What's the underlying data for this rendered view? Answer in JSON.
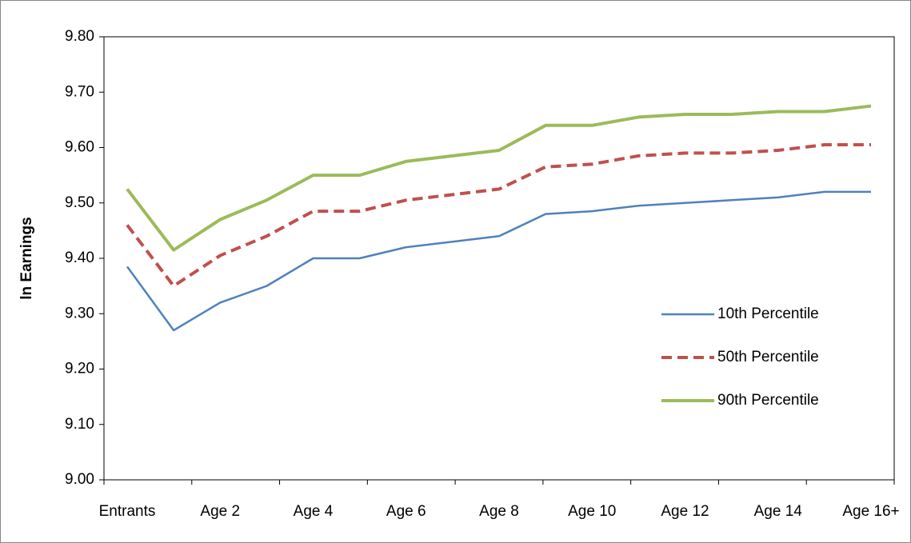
{
  "chart_data": {
    "type": "line",
    "y_label": "ln Earnings",
    "categories": [
      "Entrants",
      null,
      "Age 2",
      null,
      "Age 4",
      null,
      "Age 6",
      null,
      "Age 8",
      null,
      "Age 10",
      null,
      "Age 12",
      null,
      "Age 14",
      null,
      "Age 16+"
    ],
    "series": [
      {
        "name": "10th Percentile",
        "color": "#4f81bd",
        "dash": "solid",
        "values": [
          9.385,
          9.27,
          9.32,
          9.35,
          9.4,
          9.4,
          9.42,
          9.43,
          9.44,
          9.48,
          9.485,
          9.495,
          9.5,
          9.505,
          9.51,
          9.52,
          9.52
        ]
      },
      {
        "name": "50th Percentile",
        "color": "#c0504d",
        "dash": "dashed",
        "values": [
          9.46,
          9.35,
          9.405,
          9.44,
          9.485,
          9.485,
          9.505,
          9.515,
          9.525,
          9.565,
          9.57,
          9.585,
          9.59,
          9.59,
          9.595,
          9.605,
          9.605
        ]
      },
      {
        "name": "90th Percentile",
        "color": "#9bbb59",
        "dash": "solid",
        "values": [
          9.525,
          9.415,
          9.47,
          9.505,
          9.55,
          9.55,
          9.575,
          9.585,
          9.595,
          9.64,
          9.64,
          9.655,
          9.66,
          9.66,
          9.665,
          9.665,
          9.675
        ]
      }
    ],
    "ylim": [
      9.0,
      9.8
    ],
    "yticks": [
      {
        "value": 9.0,
        "label": "9.00"
      },
      {
        "value": 9.1,
        "label": "9.10"
      },
      {
        "value": 9.2,
        "label": "9.20"
      },
      {
        "value": 9.3,
        "label": "9.30"
      },
      {
        "value": 9.4,
        "label": "9.40"
      },
      {
        "value": 9.5,
        "label": "9.50"
      },
      {
        "value": 9.6,
        "label": "9.60"
      },
      {
        "value": 9.7,
        "label": "9.70"
      },
      {
        "value": 9.8,
        "label": "9.80"
      }
    ],
    "grid": false,
    "legend": "right"
  }
}
